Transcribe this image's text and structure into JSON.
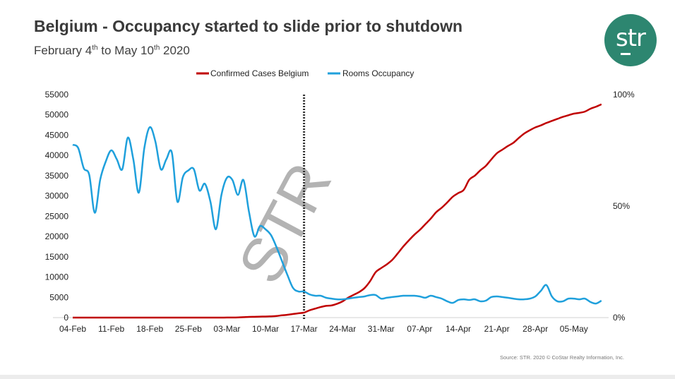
{
  "title": "Belgium - Occupancy started to slide prior to shutdown",
  "subtitle": {
    "part1": "February 4",
    "sup1": "th",
    "part2": " to May 10",
    "sup2": "th",
    "part3": " 2020"
  },
  "logo_text": "str",
  "watermark": "STR",
  "source": "Source: STR. 2020 © CoStar Realty Information, Inc.",
  "colors": {
    "cases": "#c00000",
    "occupancy": "#1fa0dc",
    "logo": "#2d8670"
  },
  "chart_data": {
    "type": "line",
    "title": "Belgium - Occupancy started to slide prior to shutdown",
    "x_start": "2020-02-04",
    "x_end": "2020-05-10",
    "x_tick_labels": [
      "04-Feb",
      "11-Feb",
      "18-Feb",
      "25-Feb",
      "03-Mar",
      "10-Mar",
      "17-Mar",
      "24-Mar",
      "31-Mar",
      "07-Apr",
      "14-Apr",
      "21-Apr",
      "28-Apr",
      "05-May"
    ],
    "y_left": {
      "ticks": [
        "0",
        "5000",
        "10000",
        "15000",
        "20000",
        "25000",
        "30000",
        "35000",
        "40000",
        "45000",
        "50000",
        "55000"
      ],
      "range": [
        0,
        55000
      ]
    },
    "y_right": {
      "ticks": [
        "0%",
        "50%",
        "100%"
      ],
      "range": [
        0,
        100
      ]
    },
    "shutdown_marker_index": 42,
    "legend_position": "top-center",
    "series": [
      {
        "name": "Confirmed Cases Belgium",
        "axis": "left",
        "values": [
          0,
          0,
          0,
          0,
          0,
          0,
          0,
          0,
          0,
          0,
          0,
          0,
          0,
          0,
          0,
          0,
          0,
          0,
          0,
          0,
          0,
          0,
          0,
          0,
          0,
          1,
          2,
          8,
          13,
          23,
          50,
          109,
          169,
          200,
          239,
          267,
          314,
          399,
          559,
          689,
          886,
          1058,
          1243,
          1800,
          2200,
          2600,
          2900,
          3000,
          3400,
          4000,
          4900,
          5600,
          6300,
          7300,
          9000,
          11200,
          12200,
          13100,
          14200,
          15800,
          17500,
          19000,
          20400,
          21600,
          23000,
          24400,
          26000,
          27100,
          28400,
          29800,
          30700,
          31500,
          34000,
          35000,
          36300,
          37400,
          39000,
          40500,
          41400,
          42300,
          43100,
          44300,
          45400,
          46200,
          46900,
          47400,
          48000,
          48500,
          49000,
          49500,
          49900,
          50300,
          50500,
          50800,
          51500,
          52000,
          52600
        ]
      },
      {
        "name": "Rooms Occupancy",
        "axis": "right",
        "values": [
          77.5,
          76,
          67,
          64,
          47,
          62,
          70,
          75,
          71,
          66.5,
          80.7,
          71,
          56,
          76,
          85.4,
          79,
          66.5,
          71,
          74,
          52,
          63,
          66,
          66.5,
          57,
          60,
          52,
          39.6,
          55,
          62.7,
          61.7,
          55,
          61.7,
          47.5,
          36.4,
          41,
          39.6,
          37,
          31.6,
          25.3,
          19,
          13.3,
          11.7,
          11.7,
          10.4,
          9.8,
          9.8,
          8.9,
          8.5,
          8.2,
          8.2,
          8.5,
          8.9,
          9.2,
          9.5,
          10.1,
          10.1,
          8.5,
          8.9,
          9.2,
          9.5,
          9.8,
          9.8,
          9.8,
          9.5,
          8.9,
          9.8,
          9.2,
          8.5,
          7.3,
          6.6,
          7.9,
          8.2,
          7.9,
          8.2,
          7.3,
          7.6,
          9.2,
          9.5,
          9.2,
          8.9,
          8.5,
          8.2,
          8.2,
          8.5,
          9.5,
          12,
          14.6,
          9.5,
          7.3,
          7.3,
          8.5,
          8.5,
          8.2,
          8.5,
          7,
          6.3,
          7.6
        ]
      }
    ]
  }
}
